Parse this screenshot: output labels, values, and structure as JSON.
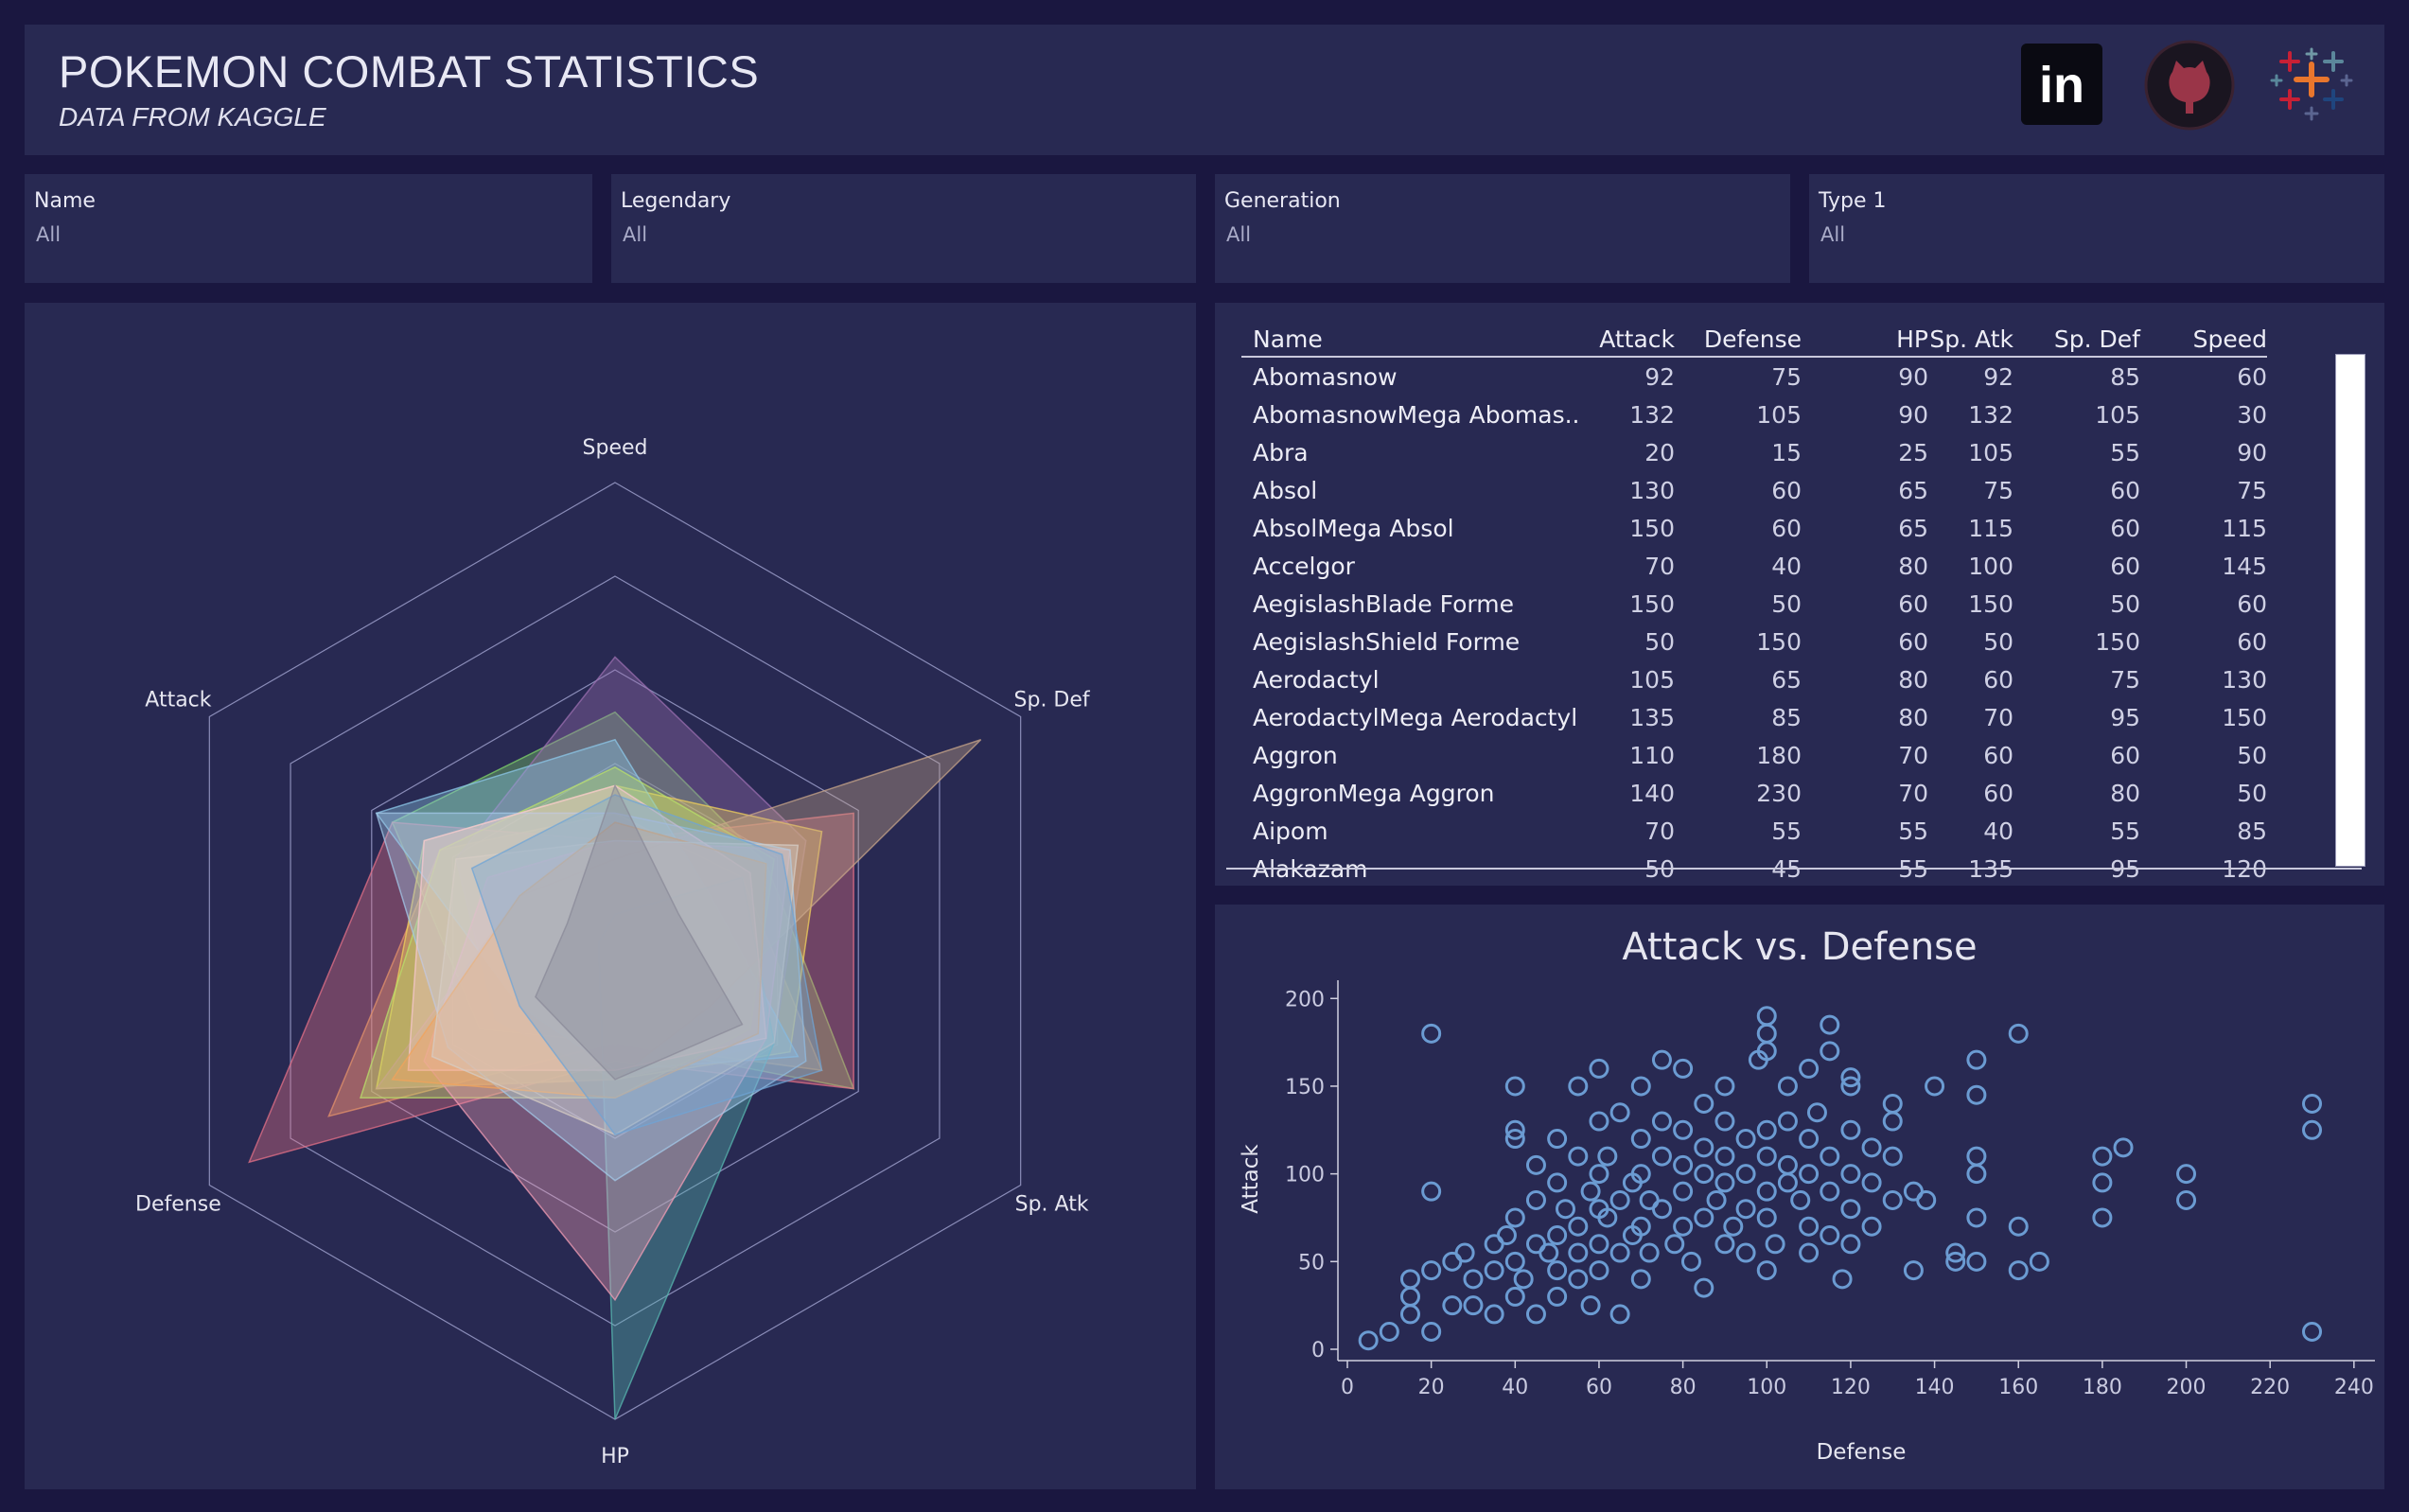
{
  "header": {
    "title": "POKEMON COMBAT STATISTICS",
    "subtitle": "DATA FROM KAGGLE",
    "links": [
      {
        "icon": "linkedin-icon",
        "label": "in"
      },
      {
        "icon": "github-icon"
      },
      {
        "icon": "tableau-icon"
      }
    ]
  },
  "filters": [
    {
      "label": "Name",
      "value": "All"
    },
    {
      "label": "Legendary",
      "value": "All"
    },
    {
      "label": "Generation",
      "value": "All"
    },
    {
      "label": "Type 1",
      "value": "All"
    }
  ],
  "radar": {
    "axes": [
      "Speed",
      "Sp. Def",
      "Sp. Atk",
      "HP",
      "Defense",
      "Attack"
    ],
    "max": 255,
    "rings": 5,
    "series": [
      {
        "color": "#e3a55a",
        "values": [
          75,
          80,
          130,
          50,
          180,
          110
        ]
      },
      {
        "color": "#7fd36a",
        "values": [
          130,
          95,
          150,
          50,
          85,
          140
        ]
      },
      {
        "color": "#e47087",
        "values": [
          60,
          150,
          150,
          60,
          230,
          140
        ]
      },
      {
        "color": "#9b6fb0",
        "values": [
          160,
          120,
          100,
          70,
          75,
          100
        ]
      },
      {
        "color": "#f0d05b",
        "values": [
          90,
          130,
          110,
          70,
          150,
          120
        ]
      },
      {
        "color": "#8cc7e8",
        "values": [
          115,
          60,
          115,
          65,
          60,
          150
        ]
      },
      {
        "color": "#b9e06a",
        "values": [
          100,
          100,
          85,
          80,
          160,
          110
        ]
      },
      {
        "color": "#58b8b0",
        "values": [
          20,
          80,
          100,
          255,
          10,
          10
        ]
      },
      {
        "color": "#f39db5",
        "values": [
          60,
          110,
          95,
          190,
          120,
          80
        ]
      },
      {
        "color": "#c8a68a",
        "values": [
          50,
          230,
          60,
          70,
          150,
          60
        ]
      },
      {
        "color": "#a3c8e8",
        "values": [
          75,
          110,
          120,
          125,
          105,
          150
        ]
      },
      {
        "color": "#f7c7d0",
        "values": [
          90,
          85,
          95,
          65,
          130,
          120
        ]
      },
      {
        "color": "#f2a35b",
        "values": [
          70,
          95,
          90,
          80,
          140,
          60
        ]
      },
      {
        "color": "#d6ccc4",
        "values": [
          60,
          115,
          100,
          100,
          115,
          100
        ]
      },
      {
        "color": "#6fa4d6",
        "values": [
          85,
          105,
          130,
          100,
          60,
          90
        ]
      },
      {
        "color": "#8a8a98",
        "values": [
          90,
          40,
          80,
          70,
          50,
          30
        ]
      }
    ]
  },
  "table": {
    "columns": [
      "Name",
      "Attack",
      "Defense",
      "HP",
      "Sp. Atk",
      "Sp. Def",
      "Speed"
    ],
    "rows": [
      [
        "Abomasnow",
        "92",
        "75",
        "90",
        "92",
        "85",
        "60"
      ],
      [
        "AbomasnowMega Abomas..",
        "132",
        "105",
        "90",
        "132",
        "105",
        "30"
      ],
      [
        "Abra",
        "20",
        "15",
        "25",
        "105",
        "55",
        "90"
      ],
      [
        "Absol",
        "130",
        "60",
        "65",
        "75",
        "60",
        "75"
      ],
      [
        "AbsolMega Absol",
        "150",
        "60",
        "65",
        "115",
        "60",
        "115"
      ],
      [
        "Accelgor",
        "70",
        "40",
        "80",
        "100",
        "60",
        "145"
      ],
      [
        "AegislashBlade Forme",
        "150",
        "50",
        "60",
        "150",
        "50",
        "60"
      ],
      [
        "AegislashShield Forme",
        "50",
        "150",
        "60",
        "50",
        "150",
        "60"
      ],
      [
        "Aerodactyl",
        "105",
        "65",
        "80",
        "60",
        "75",
        "130"
      ],
      [
        "AerodactylMega Aerodactyl",
        "135",
        "85",
        "80",
        "70",
        "95",
        "150"
      ],
      [
        "Aggron",
        "110",
        "180",
        "70",
        "60",
        "60",
        "50"
      ],
      [
        "AggronMega Aggron",
        "140",
        "230",
        "70",
        "60",
        "80",
        "50"
      ],
      [
        "Aipom",
        "70",
        "55",
        "55",
        "40",
        "55",
        "85"
      ],
      [
        "Alakazam",
        "50",
        "45",
        "55",
        "135",
        "95",
        "120"
      ]
    ]
  },
  "chart_data": {
    "type": "scatter",
    "title": "Attack vs. Defense",
    "xlabel": "Defense",
    "ylabel": "Attack",
    "xlim": [
      0,
      245
    ],
    "ylim": [
      0,
      205
    ],
    "xticks": [
      0,
      20,
      40,
      60,
      80,
      100,
      120,
      140,
      160,
      180,
      200,
      220,
      240
    ],
    "yticks": [
      0,
      50,
      100,
      150,
      200
    ],
    "color": "#6b9bd2",
    "points": [
      [
        5,
        5
      ],
      [
        10,
        10
      ],
      [
        15,
        20
      ],
      [
        15,
        30
      ],
      [
        15,
        40
      ],
      [
        20,
        90
      ],
      [
        20,
        180
      ],
      [
        20,
        45
      ],
      [
        20,
        10
      ],
      [
        25,
        50
      ],
      [
        28,
        55
      ],
      [
        25,
        25
      ],
      [
        30,
        25
      ],
      [
        30,
        40
      ],
      [
        35,
        45
      ],
      [
        35,
        20
      ],
      [
        35,
        60
      ],
      [
        38,
        65
      ],
      [
        40,
        30
      ],
      [
        40,
        50
      ],
      [
        40,
        75
      ],
      [
        40,
        120
      ],
      [
        40,
        125
      ],
      [
        40,
        150
      ],
      [
        42,
        40
      ],
      [
        45,
        60
      ],
      [
        45,
        85
      ],
      [
        45,
        105
      ],
      [
        45,
        20
      ],
      [
        48,
        55
      ],
      [
        50,
        45
      ],
      [
        50,
        65
      ],
      [
        50,
        95
      ],
      [
        50,
        120
      ],
      [
        50,
        30
      ],
      [
        52,
        80
      ],
      [
        55,
        70
      ],
      [
        55,
        40
      ],
      [
        55,
        110
      ],
      [
        55,
        150
      ],
      [
        55,
        55
      ],
      [
        58,
        90
      ],
      [
        58,
        25
      ],
      [
        60,
        60
      ],
      [
        60,
        80
      ],
      [
        60,
        100
      ],
      [
        60,
        130
      ],
      [
        60,
        160
      ],
      [
        60,
        45
      ],
      [
        62,
        75
      ],
      [
        62,
        110
      ],
      [
        65,
        55
      ],
      [
        65,
        85
      ],
      [
        65,
        135
      ],
      [
        65,
        20
      ],
      [
        68,
        95
      ],
      [
        68,
        65
      ],
      [
        70,
        70
      ],
      [
        70,
        100
      ],
      [
        70,
        120
      ],
      [
        70,
        150
      ],
      [
        70,
        40
      ],
      [
        72,
        85
      ],
      [
        72,
        55
      ],
      [
        75,
        80
      ],
      [
        75,
        110
      ],
      [
        75,
        165
      ],
      [
        75,
        130
      ],
      [
        78,
        60
      ],
      [
        80,
        90
      ],
      [
        80,
        105
      ],
      [
        80,
        70
      ],
      [
        80,
        125
      ],
      [
        80,
        160
      ],
      [
        82,
        50
      ],
      [
        85,
        75
      ],
      [
        85,
        100
      ],
      [
        85,
        115
      ],
      [
        85,
        140
      ],
      [
        85,
        35
      ],
      [
        88,
        85
      ],
      [
        90,
        60
      ],
      [
        90,
        95
      ],
      [
        90,
        130
      ],
      [
        90,
        150
      ],
      [
        90,
        110
      ],
      [
        92,
        70
      ],
      [
        95,
        80
      ],
      [
        95,
        100
      ],
      [
        95,
        120
      ],
      [
        95,
        55
      ],
      [
        98,
        165
      ],
      [
        100,
        90
      ],
      [
        100,
        110
      ],
      [
        100,
        125
      ],
      [
        100,
        170
      ],
      [
        100,
        180
      ],
      [
        100,
        190
      ],
      [
        100,
        75
      ],
      [
        100,
        45
      ],
      [
        102,
        60
      ],
      [
        105,
        95
      ],
      [
        105,
        130
      ],
      [
        105,
        150
      ],
      [
        105,
        105
      ],
      [
        108,
        85
      ],
      [
        110,
        70
      ],
      [
        110,
        100
      ],
      [
        110,
        120
      ],
      [
        110,
        160
      ],
      [
        110,
        55
      ],
      [
        112,
        135
      ],
      [
        115,
        90
      ],
      [
        115,
        110
      ],
      [
        115,
        170
      ],
      [
        115,
        185
      ],
      [
        115,
        65
      ],
      [
        118,
        40
      ],
      [
        120,
        80
      ],
      [
        120,
        100
      ],
      [
        120,
        125
      ],
      [
        120,
        150
      ],
      [
        120,
        155
      ],
      [
        120,
        60
      ],
      [
        125,
        95
      ],
      [
        125,
        115
      ],
      [
        125,
        70
      ],
      [
        130,
        85
      ],
      [
        130,
        110
      ],
      [
        130,
        130
      ],
      [
        130,
        140
      ],
      [
        135,
        45
      ],
      [
        135,
        90
      ],
      [
        138,
        85
      ],
      [
        140,
        150
      ],
      [
        145,
        50
      ],
      [
        145,
        55
      ],
      [
        150,
        50
      ],
      [
        150,
        75
      ],
      [
        150,
        100
      ],
      [
        150,
        110
      ],
      [
        150,
        145
      ],
      [
        150,
        165
      ],
      [
        160,
        45
      ],
      [
        160,
        70
      ],
      [
        160,
        180
      ],
      [
        165,
        50
      ],
      [
        180,
        75
      ],
      [
        180,
        95
      ],
      [
        180,
        110
      ],
      [
        185,
        115
      ],
      [
        200,
        85
      ],
      [
        200,
        100
      ],
      [
        230,
        125
      ],
      [
        230,
        140
      ],
      [
        230,
        10
      ]
    ]
  }
}
